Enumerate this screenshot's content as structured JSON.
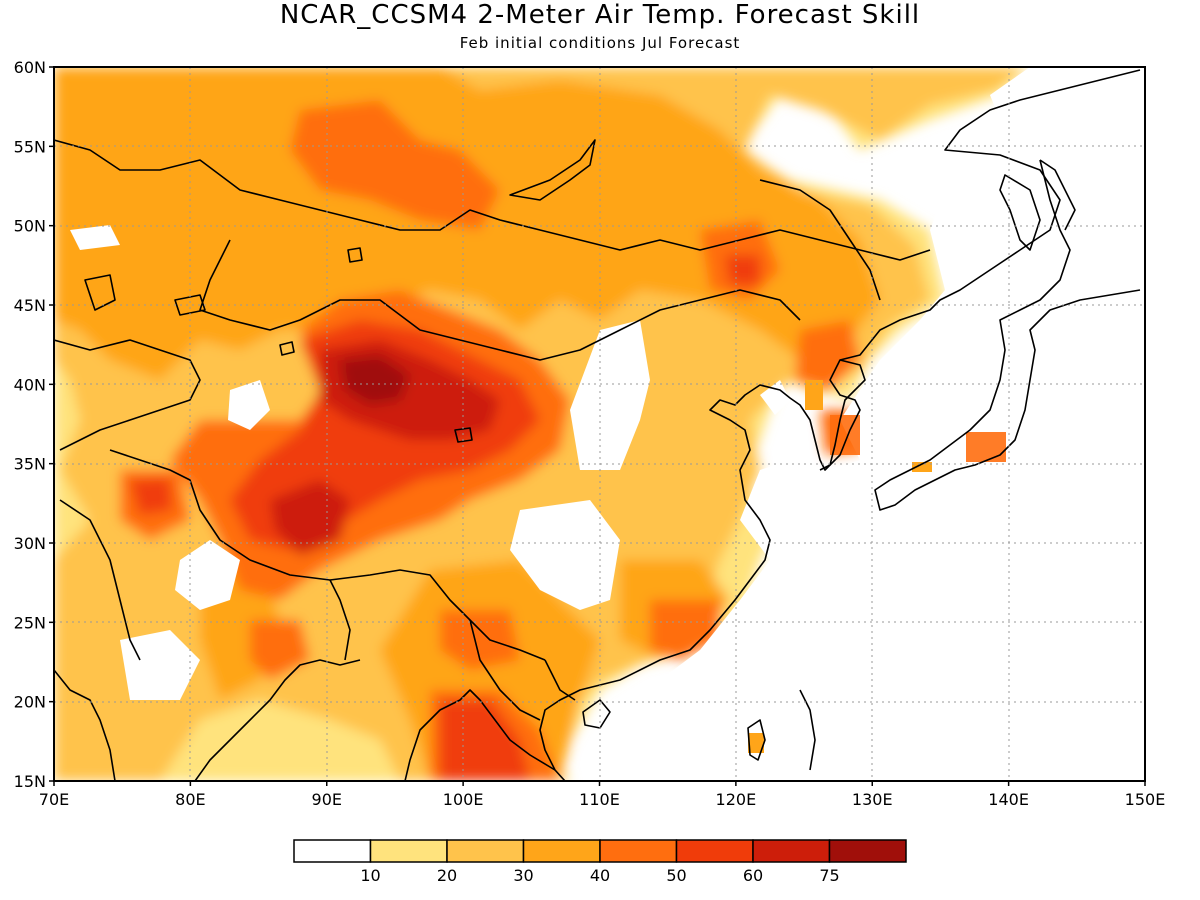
{
  "title": "NCAR_CCSM4 2-Meter Air Temp. Forecast Skill",
  "subtitle": "Feb initial conditions  Jul Forecast",
  "map": {
    "lon_range": [
      70,
      150
    ],
    "lat_range": [
      15,
      60
    ],
    "lat_ticks": [
      "60N",
      "55N",
      "50N",
      "45N",
      "40N",
      "35N",
      "30N",
      "25N",
      "20N",
      "15N"
    ],
    "lon_ticks": [
      "70E",
      "80E",
      "90E",
      "100E",
      "110E",
      "120E",
      "130E",
      "140E",
      "150E"
    ],
    "grid_spacing_deg": 5,
    "grid_style": "dotted"
  },
  "colorbar": {
    "labels": [
      "10",
      "20",
      "30",
      "40",
      "50",
      "60",
      "75"
    ],
    "colors": [
      "#ffffff",
      "#ffe37d",
      "#ffc34b",
      "#ffa519",
      "#ff6e0f",
      "#f03c0a",
      "#cd1e0a",
      "#a00f0a"
    ]
  }
}
